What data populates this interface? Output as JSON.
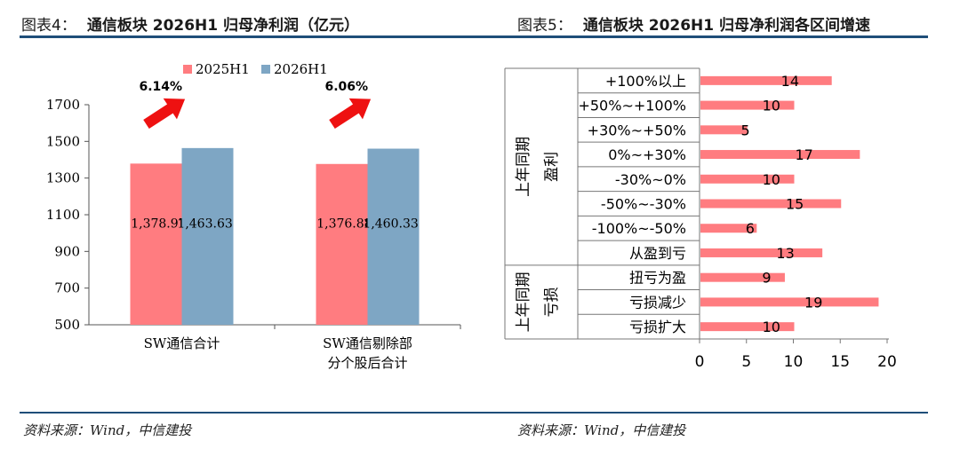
{
  "header": {
    "left": {
      "prefix": "图表4：",
      "title": "通信板块 2026H1 归母净利润（亿元）"
    },
    "right": {
      "prefix": "图表5：",
      "title": "通信板块 2026H1 归母净利润各区间增速"
    }
  },
  "footer": {
    "left_source": "资料来源：Wind，中信建投",
    "right_source": "资料来源：Wind，中信建投"
  },
  "chart_data": [
    {
      "type": "bar",
      "categories": [
        "SW通信合计",
        "SW通信剔除部分个股后合计"
      ],
      "category_lines": [
        [
          "SW通信合计"
        ],
        [
          "SW通信剔除部",
          "分个股后合计"
        ]
      ],
      "series": [
        {
          "name": "2025H1",
          "values": [
            1378.97,
            1376.88
          ],
          "labels": [
            "1,378.97",
            "1,376.88"
          ],
          "color": "#ff7c80"
        },
        {
          "name": "2026H1",
          "values": [
            1463.63,
            1460.33
          ],
          "labels": [
            "1,463.63",
            "1,460.33"
          ],
          "color": "#7ea6c4"
        }
      ],
      "ylim": [
        500,
        1700
      ],
      "yticks": [
        500,
        700,
        900,
        1100,
        1300,
        1500,
        1700
      ],
      "growth_annotations": [
        "6.14%",
        "6.06%"
      ],
      "arrow_color": "#ee1111",
      "legend_position": "top-center",
      "grid": false
    },
    {
      "type": "bar",
      "orientation": "horizontal",
      "categories": [
        "+100%以上",
        "+50%~+100%",
        "+30%~+50%",
        "0%~+30%",
        "-30%~0%",
        "-50%~-30%",
        "-100%~-50%",
        "从盈到亏",
        "扭亏为盈",
        "亏损减少",
        "亏损扩大"
      ],
      "values": [
        14,
        10,
        5,
        17,
        10,
        15,
        6,
        13,
        9,
        19,
        10
      ],
      "groups": [
        {
          "outer": "上年同期",
          "inner": "盈利",
          "count": 8
        },
        {
          "outer": "上年同期",
          "inner": "亏损",
          "count": 3
        }
      ],
      "xlim": [
        0,
        20
      ],
      "xticks": [
        0,
        5,
        10,
        15,
        20
      ],
      "bar_color": "#ff7c80",
      "grid": false
    }
  ]
}
